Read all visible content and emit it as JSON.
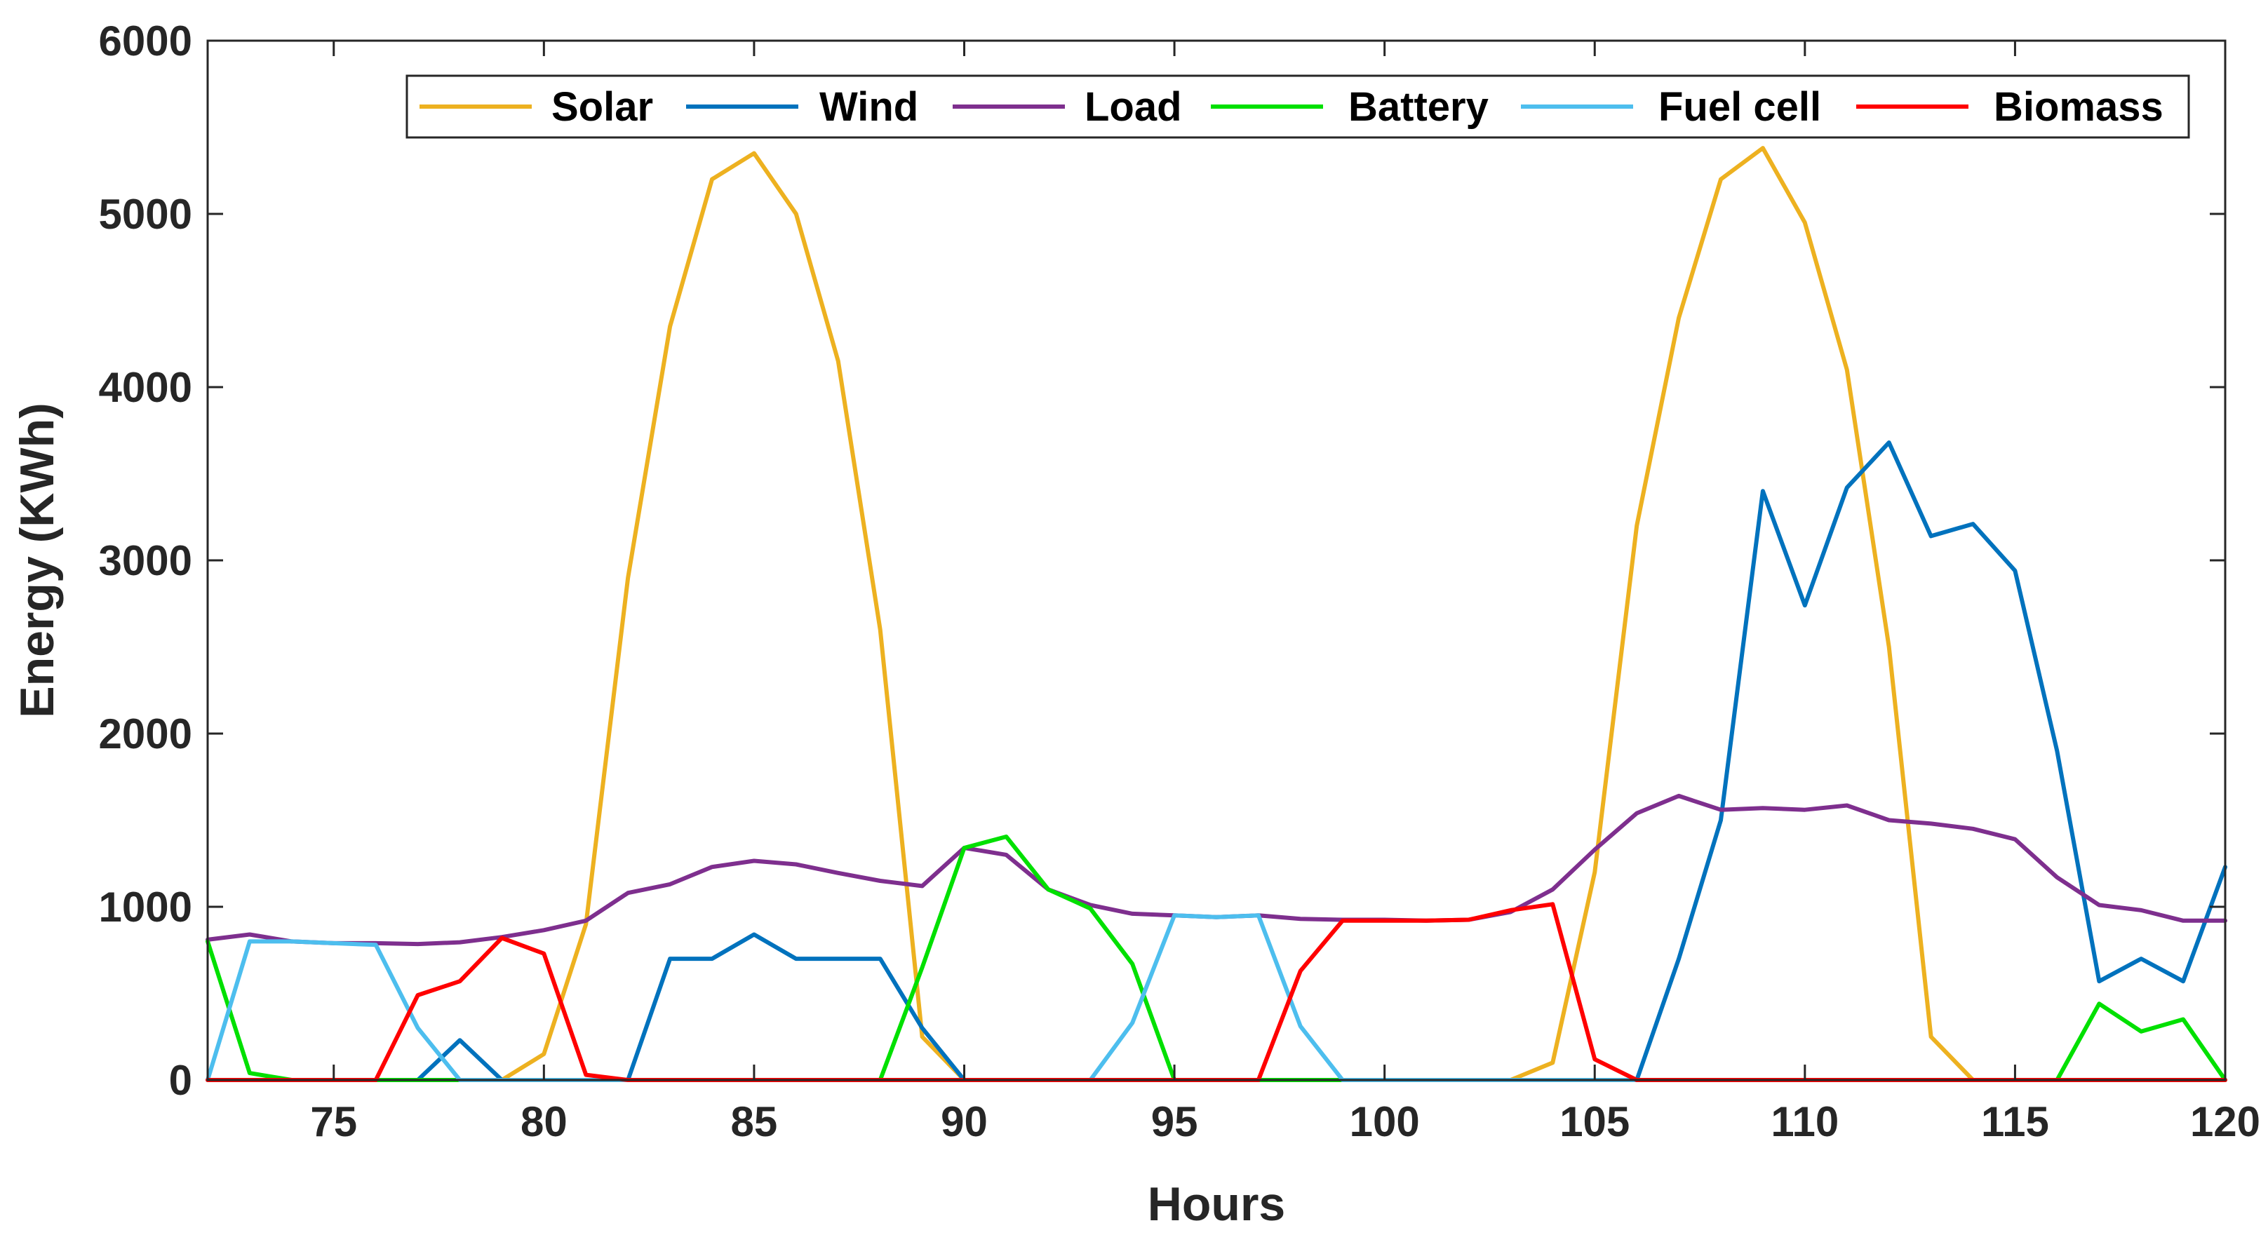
{
  "chart_data": {
    "type": "line",
    "xlabel": "Hours",
    "ylabel": "Energy (KWh)",
    "xlim": [
      72,
      120
    ],
    "ylim": [
      0,
      6000
    ],
    "xticks": [
      75,
      80,
      85,
      90,
      95,
      100,
      105,
      110,
      115,
      120
    ],
    "yticks": [
      0,
      1000,
      2000,
      3000,
      4000,
      5000,
      6000
    ],
    "grid": false,
    "legend_position": "top",
    "x": [
      72,
      73,
      74,
      75,
      76,
      77,
      78,
      79,
      80,
      81,
      82,
      83,
      84,
      85,
      86,
      87,
      88,
      89,
      90,
      91,
      92,
      93,
      94,
      95,
      96,
      97,
      98,
      99,
      100,
      101,
      102,
      103,
      104,
      105,
      106,
      107,
      108,
      109,
      110,
      111,
      112,
      113,
      114,
      115,
      116,
      117,
      118,
      119,
      120
    ],
    "series": [
      {
        "name": "Solar",
        "color": "#EDB120",
        "values": [
          0,
          0,
          0,
          0,
          0,
          0,
          0,
          0,
          150,
          900,
          2900,
          4350,
          5200,
          5350,
          5000,
          4150,
          2600,
          250,
          0,
          0,
          0,
          0,
          0,
          0,
          0,
          0,
          0,
          0,
          0,
          0,
          0,
          0,
          100,
          1200,
          3200,
          4400,
          5200,
          5380,
          4950,
          4100,
          2500,
          250,
          0,
          0,
          0,
          0,
          0,
          0,
          0
        ]
      },
      {
        "name": "Wind",
        "color": "#0072BD",
        "values": [
          0,
          0,
          0,
          0,
          0,
          0,
          230,
          0,
          0,
          0,
          0,
          700,
          700,
          840,
          700,
          700,
          700,
          300,
          0,
          0,
          0,
          0,
          0,
          0,
          0,
          0,
          0,
          0,
          0,
          0,
          0,
          0,
          0,
          0,
          0,
          700,
          1500,
          3400,
          2740,
          3420,
          3680,
          3140,
          3210,
          2940,
          1900,
          570,
          700,
          570,
          1230
        ]
      },
      {
        "name": "Load",
        "color": "#7E2F8E",
        "values": [
          810,
          840,
          800,
          790,
          790,
          785,
          795,
          825,
          865,
          920,
          1080,
          1130,
          1230,
          1265,
          1245,
          1195,
          1150,
          1120,
          1340,
          1300,
          1100,
          1010,
          960,
          950,
          940,
          950,
          930,
          925,
          925,
          920,
          925,
          970,
          1100,
          1330,
          1540,
          1640,
          1560,
          1570,
          1560,
          1585,
          1500,
          1480,
          1450,
          1390,
          1170,
          1010,
          980,
          920,
          920
        ]
      },
      {
        "name": "Battery",
        "color": "#00E000",
        "values": [
          800,
          40,
          0,
          0,
          0,
          0,
          0,
          0,
          0,
          0,
          0,
          0,
          0,
          0,
          0,
          0,
          0,
          650,
          1340,
          1405,
          1100,
          990,
          670,
          0,
          0,
          0,
          0,
          0,
          0,
          0,
          0,
          0,
          0,
          0,
          0,
          0,
          0,
          0,
          0,
          0,
          0,
          0,
          0,
          0,
          0,
          440,
          280,
          350,
          0
        ]
      },
      {
        "name": "Fuel cell",
        "color": "#4DBEEE",
        "values": [
          0,
          800,
          800,
          790,
          780,
          300,
          0,
          0,
          0,
          0,
          0,
          0,
          0,
          0,
          0,
          0,
          0,
          0,
          0,
          0,
          0,
          0,
          330,
          950,
          940,
          950,
          310,
          0,
          0,
          0,
          0,
          0,
          0,
          0,
          0,
          0,
          0,
          0,
          0,
          0,
          0,
          0,
          0,
          0,
          0,
          0,
          0,
          0,
          0
        ]
      },
      {
        "name": "Biomass",
        "color": "#FF0000",
        "values": [
          0,
          0,
          0,
          0,
          0,
          490,
          570,
          820,
          730,
          30,
          0,
          0,
          0,
          0,
          0,
          0,
          0,
          0,
          0,
          0,
          0,
          0,
          0,
          0,
          0,
          0,
          630,
          920,
          920,
          920,
          925,
          980,
          1015,
          120,
          0,
          0,
          0,
          0,
          0,
          0,
          0,
          0,
          0,
          0,
          0,
          0,
          0,
          0,
          0
        ]
      }
    ]
  }
}
